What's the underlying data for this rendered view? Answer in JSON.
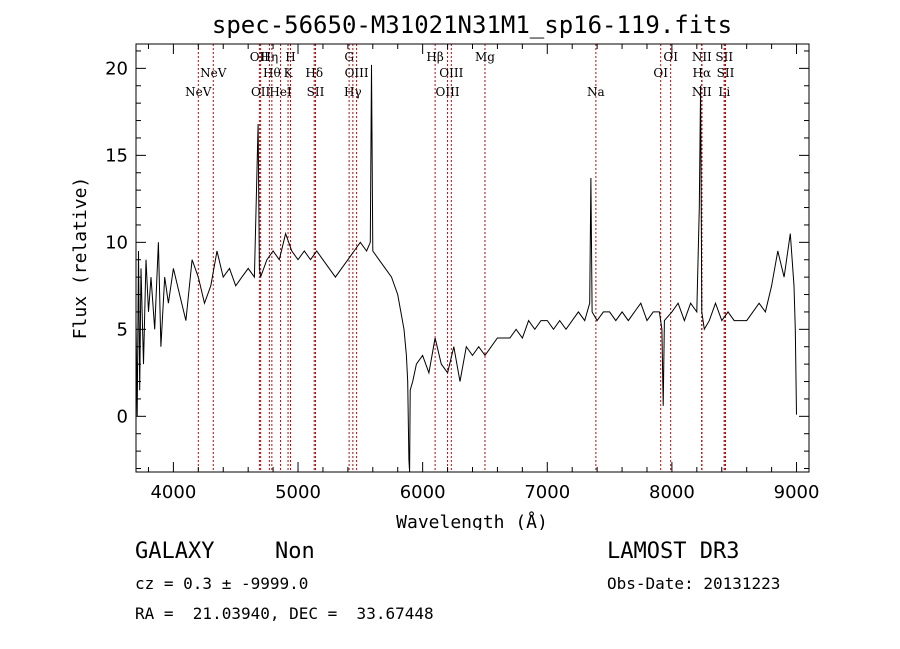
{
  "chart_data": {
    "type": "line",
    "title": "spec-56650-M31021N31M1_sp16-119.fits",
    "xlabel": "Wavelength (Å)",
    "ylabel": "Flux (relative)",
    "xlim": [
      3700,
      9100
    ],
    "ylim": [
      -3.2,
      21.4
    ],
    "xticks": [
      4000,
      5000,
      6000,
      7000,
      8000,
      9000
    ],
    "yticks": [
      0,
      5,
      10,
      15,
      20
    ],
    "line_color": "#000000",
    "marker_color": "#cc0000",
    "spectrum": {
      "x": [
        3700,
        3710,
        3720,
        3730,
        3740,
        3760,
        3780,
        3800,
        3820,
        3850,
        3880,
        3900,
        3930,
        3960,
        4000,
        4050,
        4100,
        4150,
        4200,
        4250,
        4300,
        4350,
        4400,
        4450,
        4500,
        4550,
        4600,
        4650,
        4680,
        4690,
        4700,
        4750,
        4800,
        4850,
        4900,
        4950,
        5000,
        5050,
        5100,
        5150,
        5200,
        5250,
        5300,
        5350,
        5400,
        5450,
        5500,
        5550,
        5580,
        5590,
        5600,
        5650,
        5700,
        5750,
        5800,
        5850,
        5870,
        5880,
        5890,
        5895,
        5900,
        5920,
        5950,
        6000,
        6050,
        6100,
        6150,
        6200,
        6250,
        6300,
        6350,
        6400,
        6450,
        6500,
        6550,
        6600,
        6650,
        6700,
        6750,
        6800,
        6850,
        6900,
        6950,
        7000,
        7050,
        7100,
        7150,
        7200,
        7250,
        7300,
        7340,
        7350,
        7360,
        7400,
        7450,
        7500,
        7550,
        7600,
        7650,
        7700,
        7750,
        7800,
        7850,
        7900,
        7920,
        7930,
        7940,
        8000,
        8050,
        8100,
        8150,
        8200,
        8220,
        8230,
        8240,
        8260,
        8300,
        8350,
        8400,
        8450,
        8500,
        8550,
        8600,
        8650,
        8700,
        8750,
        8800,
        8850,
        8900,
        8950,
        8980,
        8990,
        9000
      ],
      "y": [
        5.5,
        0.0,
        9.5,
        1.5,
        8.5,
        3.0,
        9.0,
        6.0,
        8.0,
        5.0,
        10.0,
        4.0,
        8.0,
        6.5,
        8.5,
        7.0,
        5.5,
        9.0,
        8.0,
        6.5,
        7.5,
        9.5,
        8.0,
        8.5,
        7.5,
        8.0,
        8.5,
        8.0,
        16.8,
        8.5,
        8.0,
        9.0,
        9.5,
        9.0,
        10.5,
        9.5,
        9.0,
        9.5,
        9.0,
        9.5,
        9.0,
        8.5,
        8.0,
        8.5,
        9.0,
        9.5,
        10.0,
        9.5,
        10.0,
        20.2,
        9.5,
        9.0,
        8.5,
        8.0,
        7.0,
        5.0,
        3.5,
        2.0,
        -2.5,
        -3.2,
        1.5,
        2.0,
        3.0,
        3.5,
        2.5,
        4.5,
        3.0,
        2.5,
        4.0,
        2.0,
        4.0,
        3.5,
        4.0,
        3.5,
        4.0,
        4.5,
        4.5,
        4.5,
        5.0,
        4.5,
        5.5,
        5.0,
        5.5,
        5.5,
        5.0,
        5.5,
        5.0,
        5.5,
        6.0,
        5.5,
        6.5,
        13.7,
        6.0,
        5.5,
        6.0,
        6.0,
        5.5,
        6.0,
        5.5,
        6.0,
        6.5,
        5.5,
        6.0,
        6.0,
        5.0,
        0.6,
        5.5,
        6.0,
        6.5,
        5.5,
        6.5,
        6.0,
        12.0,
        19.0,
        6.0,
        5.0,
        5.5,
        6.5,
        5.5,
        6.0,
        5.5,
        5.5,
        5.5,
        6.0,
        6.5,
        6.0,
        7.5,
        9.5,
        8.0,
        10.5,
        7.5,
        5.0,
        0.1
      ]
    },
    "line_markers": [
      {
        "x": 4200,
        "row": 3,
        "label": "NeV"
      },
      {
        "x": 4320,
        "row": 2,
        "label": "NeV"
      },
      {
        "x": 4690,
        "row": 1,
        "label": "OII"
      },
      {
        "x": 4700,
        "row": 3,
        "label": "OII"
      },
      {
        "x": 4770,
        "row": 1,
        "label": "Hη"
      },
      {
        "x": 4790,
        "row": 2,
        "label": "Hθ"
      },
      {
        "x": 4860,
        "row": 3,
        "label": "HeI"
      },
      {
        "x": 4940,
        "row": 1,
        "label": "H"
      },
      {
        "x": 4920,
        "row": 2,
        "label": "K"
      },
      {
        "x": 5130,
        "row": 2,
        "label": "Hδ"
      },
      {
        "x": 5140,
        "row": 3,
        "label": "SII"
      },
      {
        "x": 5410,
        "row": 1,
        "label": "G"
      },
      {
        "x": 5470,
        "row": 2,
        "label": "OIII"
      },
      {
        "x": 5440,
        "row": 3,
        "label": "Hγ"
      },
      {
        "x": 6100,
        "row": 1,
        "label": "Hβ"
      },
      {
        "x": 6230,
        "row": 2,
        "label": "OIII"
      },
      {
        "x": 6200,
        "row": 3,
        "label": "OIII"
      },
      {
        "x": 6500,
        "row": 1,
        "label": "Mg"
      },
      {
        "x": 7390,
        "row": 3,
        "label": "Na"
      },
      {
        "x": 7990,
        "row": 1,
        "label": "OI"
      },
      {
        "x": 7910,
        "row": 2,
        "label": "OI"
      },
      {
        "x": 8240,
        "row": 1,
        "label": "NII"
      },
      {
        "x": 8240,
        "row": 2,
        "label": "Hα"
      },
      {
        "x": 8240,
        "row": 3,
        "label": "NII"
      },
      {
        "x": 8420,
        "row": 1,
        "label": "SII"
      },
      {
        "x": 8430,
        "row": 2,
        "label": "SII"
      },
      {
        "x": 8420,
        "row": 3,
        "label": "Li"
      }
    ]
  },
  "info": {
    "class": "GALAXY",
    "subclass": "Non",
    "survey": "LAMOST DR3",
    "cz": "cz = 0.3 ± -9999.0",
    "obs_date": "Obs-Date: 20131223",
    "coords": "RA =  21.03940, DEC =  33.67448"
  }
}
